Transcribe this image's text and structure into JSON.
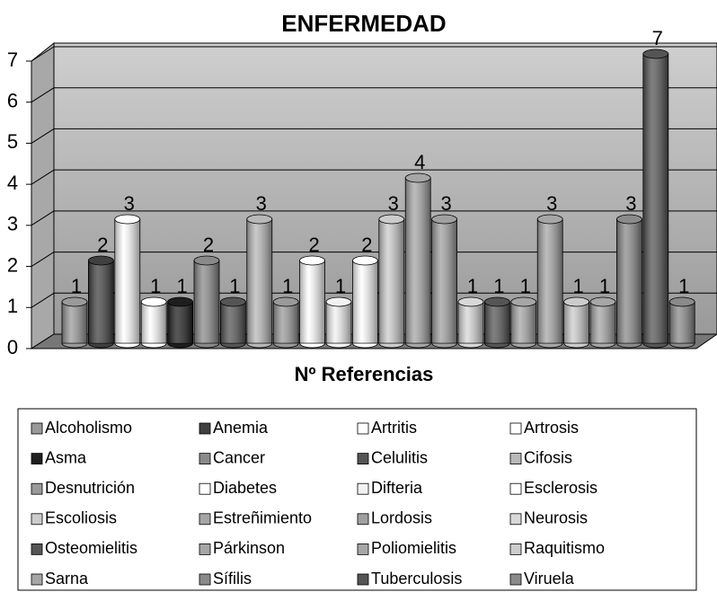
{
  "chart_data": {
    "type": "bar",
    "title": "ENFERMEDAD",
    "x_label": "Nº Referencias",
    "ylim": [
      0,
      7
    ],
    "yticks": [
      0,
      1,
      2,
      3,
      4,
      5,
      6,
      7
    ],
    "grid": true,
    "series": [
      {
        "name": "Alcoholismo",
        "color": "#9a9a9a",
        "values": [
          1
        ]
      },
      {
        "name": "Anemia",
        "color": "#404040",
        "values": [
          2
        ]
      },
      {
        "name": "Artritis",
        "color": "#ffffff",
        "values": [
          3
        ]
      },
      {
        "name": "Artrosis",
        "color": "#ffffff",
        "values": [
          1
        ]
      },
      {
        "name": "Asma",
        "color": "#1e1e1e",
        "values": [
          1
        ]
      },
      {
        "name": "Cancer",
        "color": "#8a8a8a",
        "values": [
          2
        ]
      },
      {
        "name": "Celulitis",
        "color": "#555555",
        "values": [
          1
        ]
      },
      {
        "name": "Cifosis",
        "color": "#b8b8b8",
        "values": [
          3
        ]
      },
      {
        "name": "Desnutrición",
        "color": "#9a9a9a",
        "values": [
          1
        ]
      },
      {
        "name": "Diabetes",
        "color": "#ffffff",
        "values": [
          2
        ]
      },
      {
        "name": "Difteria",
        "color": "#f2f2f2",
        "values": [
          1
        ]
      },
      {
        "name": "Esclerosis",
        "color": "#ffffff",
        "values": [
          2
        ]
      },
      {
        "name": "Escoliosis",
        "color": "#cccccc",
        "values": [
          3
        ]
      },
      {
        "name": "Estreñimiento",
        "color": "#a6a6a6",
        "values": [
          4
        ]
      },
      {
        "name": "Lordosis",
        "color": "#a0a0a0",
        "values": [
          3
        ]
      },
      {
        "name": "Neurosis",
        "color": "#d8d8d8",
        "values": [
          1
        ]
      },
      {
        "name": "Osteomielitis",
        "color": "#555555",
        "values": [
          1
        ]
      },
      {
        "name": "Párkinson",
        "color": "#a6a6a6",
        "values": [
          1
        ]
      },
      {
        "name": "Poliomielitis",
        "color": "#a6a6a6",
        "values": [
          3
        ]
      },
      {
        "name": "Raquitismo",
        "color": "#cccccc",
        "values": [
          1
        ]
      },
      {
        "name": "Sarna",
        "color": "#a6a6a6",
        "values": [
          1
        ]
      },
      {
        "name": "Sífilis",
        "color": "#8a8a8a",
        "values": [
          3
        ]
      },
      {
        "name": "Tuberculosis",
        "color": "#555555",
        "values": [
          7
        ]
      },
      {
        "name": "Viruela",
        "color": "#8a8a8a",
        "values": [
          1
        ]
      }
    ]
  }
}
